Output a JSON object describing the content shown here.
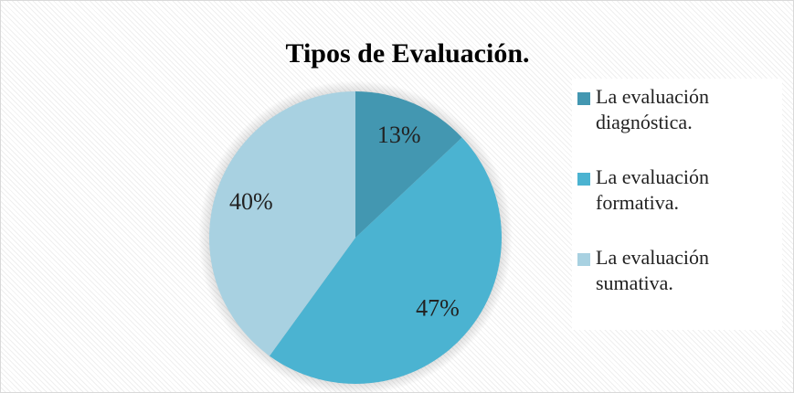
{
  "chart_data": {
    "type": "pie",
    "title": "Tipos de Evaluación.",
    "categories": [
      "La evaluación diagnóstica.",
      "La evaluación formativa.",
      "La evaluación sumativa."
    ],
    "values": [
      13,
      47,
      40
    ],
    "value_labels": [
      "13%",
      "47%",
      "40%"
    ],
    "colors": [
      "#4397b1",
      "#4bb3d1",
      "#a8d1e1"
    ],
    "legend": "right"
  }
}
